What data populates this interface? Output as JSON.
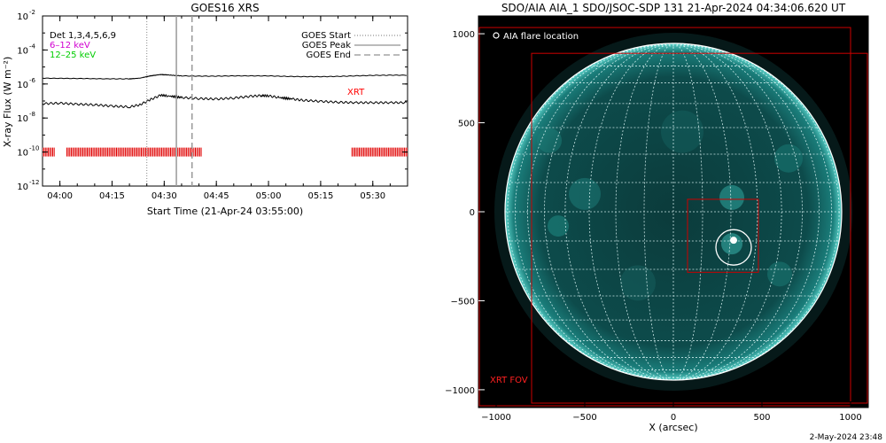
{
  "chart_data": [
    {
      "type": "line",
      "title": "GOES16 XRS",
      "xlabel": "Start Time (21-Apr-24 03:55:00)",
      "ylabel": "X-ray Flux (W m⁻²)",
      "yscale": "log",
      "ylim": [
        1e-12,
        0.01
      ],
      "xlim_minutes": [
        0,
        105
      ],
      "x_ticks": [
        "04:00",
        "04:15",
        "04:30",
        "04:45",
        "05:00",
        "05:15",
        "05:30"
      ],
      "x_tick_minutes": [
        5,
        20,
        35,
        50,
        65,
        80,
        95
      ],
      "y_ticks": [
        {
          "label": "10",
          "exp": "-2",
          "value": 0.01
        },
        {
          "label": "10",
          "exp": "-4",
          "value": 0.0001
        },
        {
          "label": "10",
          "exp": "-6",
          "value": 1e-06
        },
        {
          "label": "10",
          "exp": "-8",
          "value": 1e-08
        },
        {
          "label": "10",
          "exp": "-10",
          "value": 1e-10
        },
        {
          "label": "10",
          "exp": "-12",
          "value": 1e-12
        }
      ],
      "legend_left": [
        {
          "text": "Det 1,3,4,5,6,9",
          "color": "#000000"
        },
        {
          "text": "6–12 keV",
          "color": "#d000d0"
        },
        {
          "text": "12–25 keV",
          "color": "#00cc00"
        }
      ],
      "legend_right": [
        {
          "text": "GOES Start",
          "style": "dotted"
        },
        {
          "text": "GOES Peak",
          "style": "solid"
        },
        {
          "text": "GOES End",
          "style": "dashed"
        }
      ],
      "annotation": {
        "text": "XRT",
        "color": "#ff0000"
      },
      "series": [
        {
          "x_minutes": [
            0,
            10,
            20,
            25,
            28,
            31,
            34,
            36,
            40,
            45,
            50,
            55,
            60,
            65,
            70,
            75,
            80,
            85,
            90,
            95,
            100,
            105
          ],
          "values": [
            2.2e-06,
            2.1e-06,
            2e-06,
            2e-06,
            2.2e-06,
            3e-06,
            3.6e-06,
            3.4e-06,
            3e-06,
            2.9e-06,
            2.9e-06,
            3e-06,
            3e-06,
            3e-06,
            2.8e-06,
            2.7e-06,
            2.7e-06,
            2.8e-06,
            3e-06,
            3.2e-06,
            3.3e-06,
            3.3e-06
          ],
          "color": "#000000"
        },
        {
          "x_minutes": [
            0,
            5,
            10,
            15,
            20,
            25,
            28,
            31,
            34,
            36,
            40,
            45,
            50,
            55,
            60,
            63,
            65,
            68,
            72,
            75,
            80,
            85,
            90,
            95,
            100,
            105
          ],
          "values": [
            7e-08,
            7.5e-08,
            6.5e-08,
            6e-08,
            5e-08,
            4.5e-08,
            6e-08,
            1.2e-07,
            2.2e-07,
            2e-07,
            1.6e-07,
            1.4e-07,
            1.3e-07,
            1.5e-07,
            1.9e-07,
            2.1e-07,
            2e-07,
            1.6e-07,
            1.3e-07,
            1.1e-07,
            9.5e-08,
            8.5e-08,
            8e-08,
            8e-08,
            8e-08,
            8e-08
          ],
          "color": "#000000"
        }
      ],
      "vertical_markers": {
        "start_minute": 30,
        "peak_minute": 38.5,
        "end_minute": 43
      },
      "xrt_obs_ranges_minutes": [
        [
          0,
          3.5
        ],
        [
          7,
          46
        ],
        [
          89,
          105
        ]
      ]
    },
    {
      "type": "image",
      "title": "SDO/AIA AIA_1 SDO/JSOC-SDP 131 21-Apr-2024 04:34:06.620 UT",
      "xlabel": "X (arcsec)",
      "xlim": [
        -1100,
        1100
      ],
      "ylim": [
        -1100,
        1100
      ],
      "x_ticks": [
        "−1000",
        "−500",
        "0",
        "500",
        "1000"
      ],
      "x_tick_values": [
        -1000,
        -500,
        0,
        500,
        1000
      ],
      "y_ticks": [
        "1000",
        "500",
        "0",
        "−500",
        "−1000"
      ],
      "y_tick_values": [
        1000,
        500,
        0,
        -500,
        -1000
      ],
      "legend": "AIA flare location",
      "fov_label": "XRT FOV",
      "fov_boxes": [
        {
          "x": [
            -1095,
            1000
          ],
          "y": [
            -1090,
            1035
          ],
          "color": "#cc0000"
        },
        {
          "x": [
            -800,
            1095
          ],
          "y": [
            -1075,
            890
          ],
          "color": "#cc0000"
        },
        {
          "x": [
            80,
            480
          ],
          "y": [
            -340,
            70
          ],
          "color": "#cc0000"
        }
      ],
      "flare_circle": {
        "x": 340,
        "y": -200,
        "r": 100
      },
      "solar_radius_arcsec": 950
    }
  ],
  "footer": {
    "timestamp": "2-May-2024 23:48"
  }
}
